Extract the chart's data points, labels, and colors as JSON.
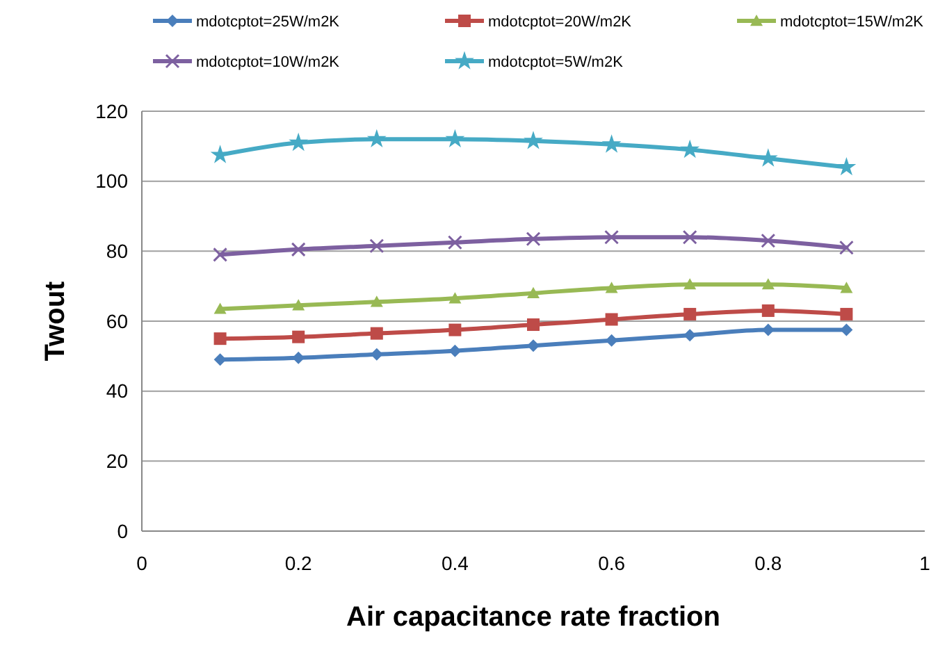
{
  "chart_data": {
    "type": "line",
    "xlabel": "Air capacitance rate fraction",
    "ylabel": "Twout",
    "x": [
      0.1,
      0.2,
      0.3,
      0.4,
      0.5,
      0.6,
      0.7,
      0.8,
      0.9
    ],
    "xlim": [
      0,
      1
    ],
    "xticks": [
      0,
      0.2,
      0.4,
      0.6,
      0.8,
      1
    ],
    "ylim": [
      0,
      120
    ],
    "yticks": [
      0,
      20,
      40,
      60,
      80,
      100,
      120
    ],
    "grid": "y",
    "legend": "top",
    "series": [
      {
        "name": "mdotcptot=25W/m2K",
        "color": "#4a7ebb",
        "marker": "diamond",
        "values": [
          49,
          49.5,
          50.5,
          51.5,
          53,
          54.5,
          56,
          57.5,
          57.5
        ]
      },
      {
        "name": "mdotcptot=20W/m2K",
        "color": "#be4b48",
        "marker": "square",
        "values": [
          55,
          55.5,
          56.5,
          57.5,
          59,
          60.5,
          62,
          63,
          62
        ]
      },
      {
        "name": "mdotcptot=15W/m2K",
        "color": "#98b954",
        "marker": "triangle",
        "values": [
          63.5,
          64.5,
          65.5,
          66.5,
          68,
          69.5,
          70.5,
          70.5,
          69.5
        ]
      },
      {
        "name": "mdotcptot=10W/m2K",
        "color": "#7d60a0",
        "marker": "cross",
        "values": [
          79,
          80.5,
          81.5,
          82.5,
          83.5,
          84,
          84,
          83,
          81
        ]
      },
      {
        "name": "mdotcptot=5W/m2K",
        "color": "#46aac5",
        "marker": "star",
        "values": [
          107.5,
          111,
          112,
          112,
          111.5,
          110.5,
          109,
          106.5,
          104
        ]
      }
    ]
  }
}
